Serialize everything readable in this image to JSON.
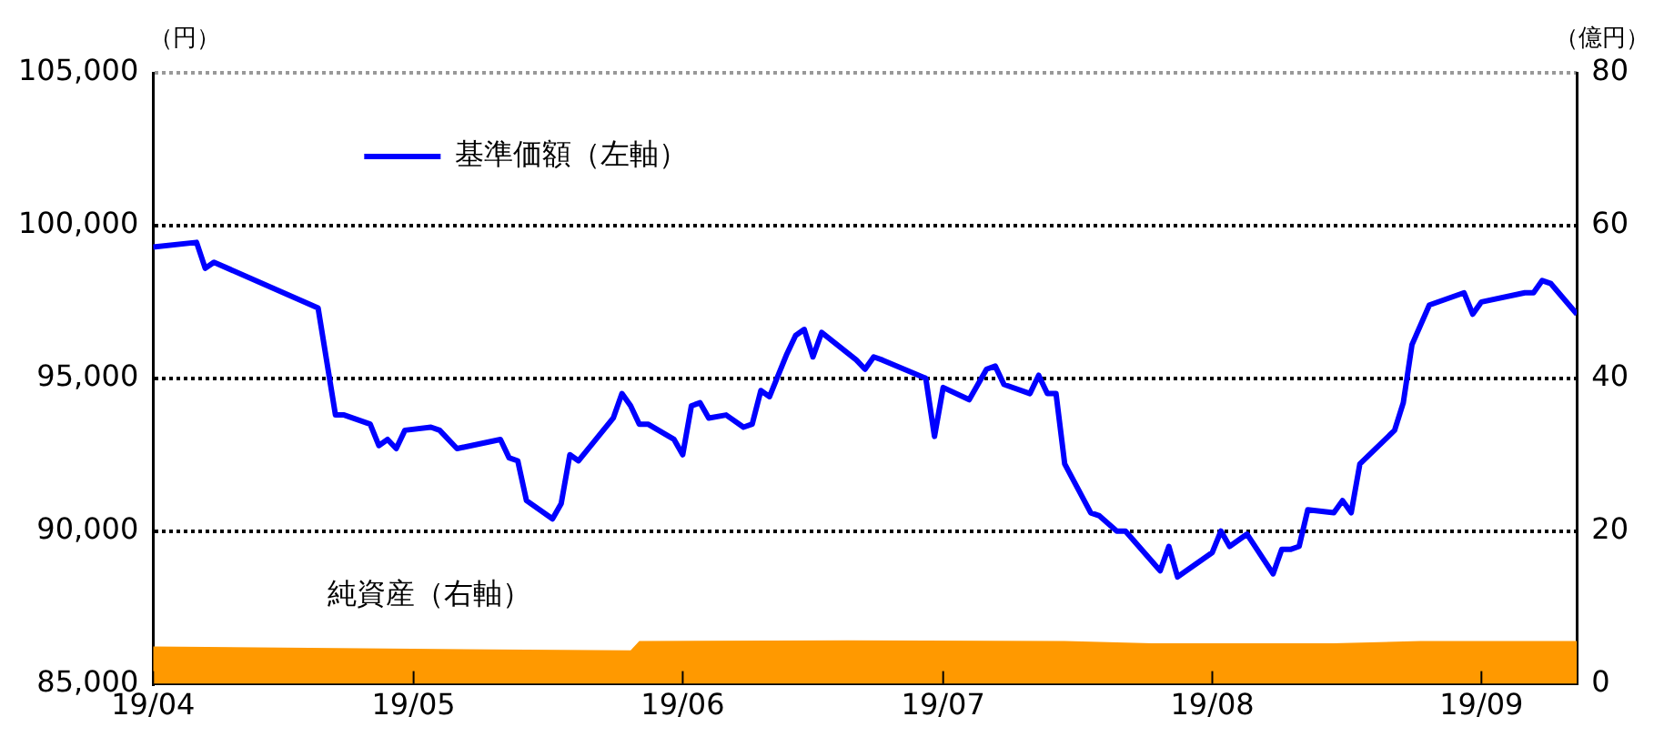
{
  "chart_data": {
    "type": "line",
    "ylabel": "（円）",
    "y2label": "（億円）",
    "xlim": [
      "--04-01",
      "--09-12"
    ],
    "xticks": [
      {
        "value": "--04-01",
        "label": "19/04"
      },
      {
        "value": "--05-01",
        "label": "19/05"
      },
      {
        "value": "--06-01",
        "label": "19/06"
      },
      {
        "value": "--07-01",
        "label": "19/07"
      },
      {
        "value": "--08-01",
        "label": "19/08"
      },
      {
        "value": "--09-01",
        "label": "19/09"
      }
    ],
    "ylim": [
      85000,
      105000
    ],
    "yticks": [
      {
        "value": 85000,
        "label": "85,000"
      },
      {
        "value": 90000,
        "label": "90,000"
      },
      {
        "value": 95000,
        "label": "95,000"
      },
      {
        "value": 100000,
        "label": "100,000"
      },
      {
        "value": 105000,
        "label": "105,000"
      }
    ],
    "y2lim": [
      0,
      80
    ],
    "y2ticks": [
      0,
      20,
      40,
      60,
      80
    ],
    "grid": "y",
    "legend": "top left",
    "series": [
      {
        "name": "基準価額（左軸）",
        "color": "#0000ff",
        "x": [
          "--04-01",
          "--04-06",
          "--04-07",
          "--04-08",
          "--04-20",
          "--04-22",
          "--04-23",
          "--04-26",
          "--04-27",
          "--04-28",
          "--04-29",
          "--04-30",
          "--05-03",
          "--05-04",
          "--05-06",
          "--05-11",
          "--05-12",
          "--05-13",
          "--05-14",
          "--05-17",
          "--05-18",
          "--05-19",
          "--05-20",
          "--05-24",
          "--05-25",
          "--05-26",
          "--05-27",
          "--05-28",
          "--05-31",
          "--06-01",
          "--06-02",
          "--06-03",
          "--06-04",
          "--06-06",
          "--06-08",
          "--06-09",
          "--06-10",
          "--06-11",
          "--06-13",
          "--06-14",
          "--06-15",
          "--06-16",
          "--06-17",
          "--06-21",
          "--06-22",
          "--06-23",
          "--06-24",
          "--06-29",
          "--06-30",
          "--07-01",
          "--07-04",
          "--07-06",
          "--07-07",
          "--07-08",
          "--07-11",
          "--07-12",
          "--07-13",
          "--07-14",
          "--07-15",
          "--07-18",
          "--07-19",
          "--07-21",
          "--07-22",
          "--07-26",
          "--07-27",
          "--07-28",
          "--08-01",
          "--08-02",
          "--08-03",
          "--08-05",
          "--08-08",
          "--08-09",
          "--08-10",
          "--08-11",
          "--08-12",
          "--08-15",
          "--08-16",
          "--08-17",
          "--08-18",
          "--08-22",
          "--08-23",
          "--08-24",
          "--08-26",
          "--08-30",
          "--08-31",
          "--09-01",
          "--09-06",
          "--09-07",
          "--09-08",
          "--09-09",
          "--09-12"
        ],
        "values": [
          99300,
          99450,
          98600,
          98800,
          97300,
          93800,
          93800,
          93500,
          92800,
          93000,
          92700,
          93300,
          93400,
          93300,
          92700,
          93000,
          92400,
          92300,
          91000,
          90400,
          90900,
          92500,
          92300,
          93700,
          94500,
          94100,
          93500,
          93500,
          93000,
          92500,
          94100,
          94200,
          93700,
          93800,
          93400,
          93500,
          94600,
          94400,
          95800,
          96400,
          96600,
          95700,
          96500,
          95600,
          95300,
          95700,
          95600,
          95000,
          93100,
          94700,
          94300,
          95300,
          95400,
          94800,
          94500,
          95100,
          94500,
          94500,
          92200,
          90600,
          90500,
          90000,
          90000,
          88700,
          89500,
          88500,
          89300,
          90000,
          89500,
          89900,
          88600,
          89400,
          89400,
          89500,
          90700,
          90600,
          91000,
          90600,
          92200,
          93300,
          94200,
          96100,
          97400,
          97800,
          97100,
          97500,
          97800,
          97800,
          98200,
          98100,
          97100
        ]
      },
      {
        "name": "純資産（右軸）",
        "type": "area",
        "axis": "y2",
        "color": "#ff9900",
        "x": [
          "--04-01",
          "--04-22",
          "--05-10",
          "--05-26",
          "--05-27",
          "--06-20",
          "--07-15",
          "--07-25",
          "--08-15",
          "--08-25",
          "--09-12"
        ],
        "values": [
          4.9,
          4.7,
          4.5,
          4.4,
          5.6,
          5.7,
          5.6,
          5.3,
          5.3,
          5.6,
          5.6
        ]
      }
    ]
  }
}
